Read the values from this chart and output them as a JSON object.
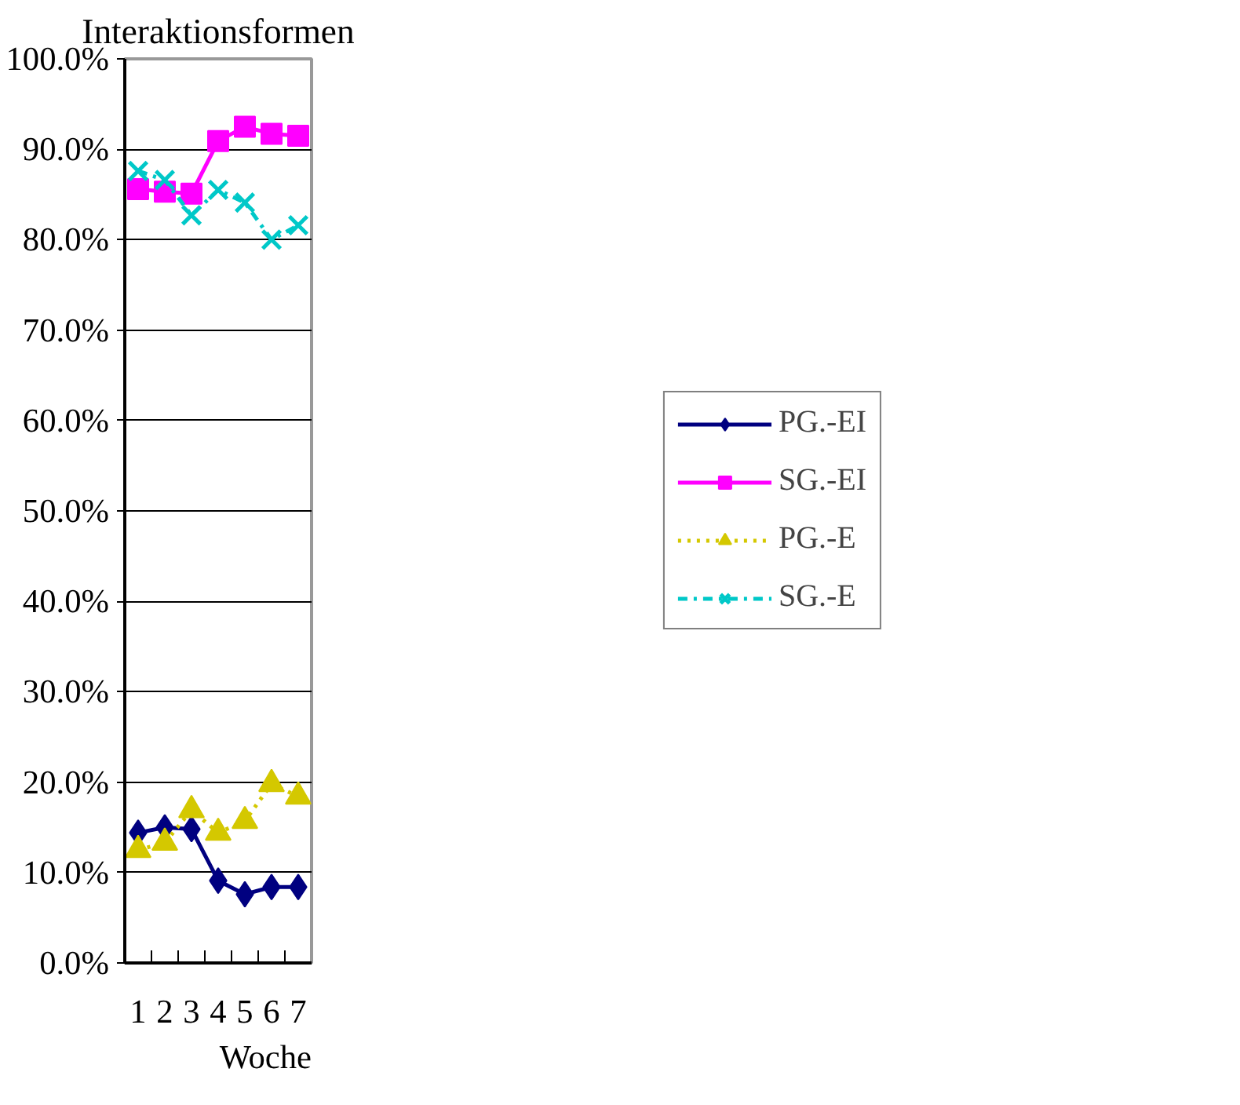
{
  "chart_data": {
    "type": "line",
    "title": "Interaktionsformen",
    "xlabel": "Woche",
    "categories": [
      "1",
      "2",
      "3",
      "4",
      "5",
      "6",
      "7"
    ],
    "series": [
      {
        "name": "PG.-EI",
        "color": "#000080",
        "marker": "diamond",
        "line_style": "solid",
        "values": [
          14.4,
          15.0,
          14.8,
          9.1,
          7.6,
          8.4,
          8.4
        ]
      },
      {
        "name": "SG.-EI",
        "color": "#ff00ff",
        "marker": "square",
        "line_style": "solid",
        "values": [
          85.6,
          85.3,
          85.1,
          90.9,
          92.5,
          91.7,
          91.5
        ]
      },
      {
        "name": "PG.-E",
        "color": "#d4c800",
        "marker": "triangle",
        "line_style": "dotted",
        "values": [
          12.5,
          13.3,
          16.9,
          14.4,
          15.7,
          19.8,
          18.4
        ]
      },
      {
        "name": "SG.-E",
        "color": "#00c8c8",
        "marker": "cross",
        "line_style": "dashdot",
        "values": [
          87.6,
          86.6,
          82.7,
          85.5,
          84.1,
          80.0,
          81.6
        ]
      }
    ],
    "ylim": [
      0,
      100
    ],
    "yticks": [
      {
        "value": 0,
        "label": "0.0%"
      },
      {
        "value": 10,
        "label": "10.0%"
      },
      {
        "value": 20,
        "label": "20.0%"
      },
      {
        "value": 30,
        "label": "30.0%"
      },
      {
        "value": 40,
        "label": "40.0%"
      },
      {
        "value": 50,
        "label": "50.0%"
      },
      {
        "value": 60,
        "label": "60.0%"
      },
      {
        "value": 70,
        "label": "70.0%"
      },
      {
        "value": 80,
        "label": "80.0%"
      },
      {
        "value": 90,
        "label": "90.0%"
      },
      {
        "value": 100,
        "label": "100.0%"
      }
    ],
    "grid": "y",
    "legend": "right"
  }
}
